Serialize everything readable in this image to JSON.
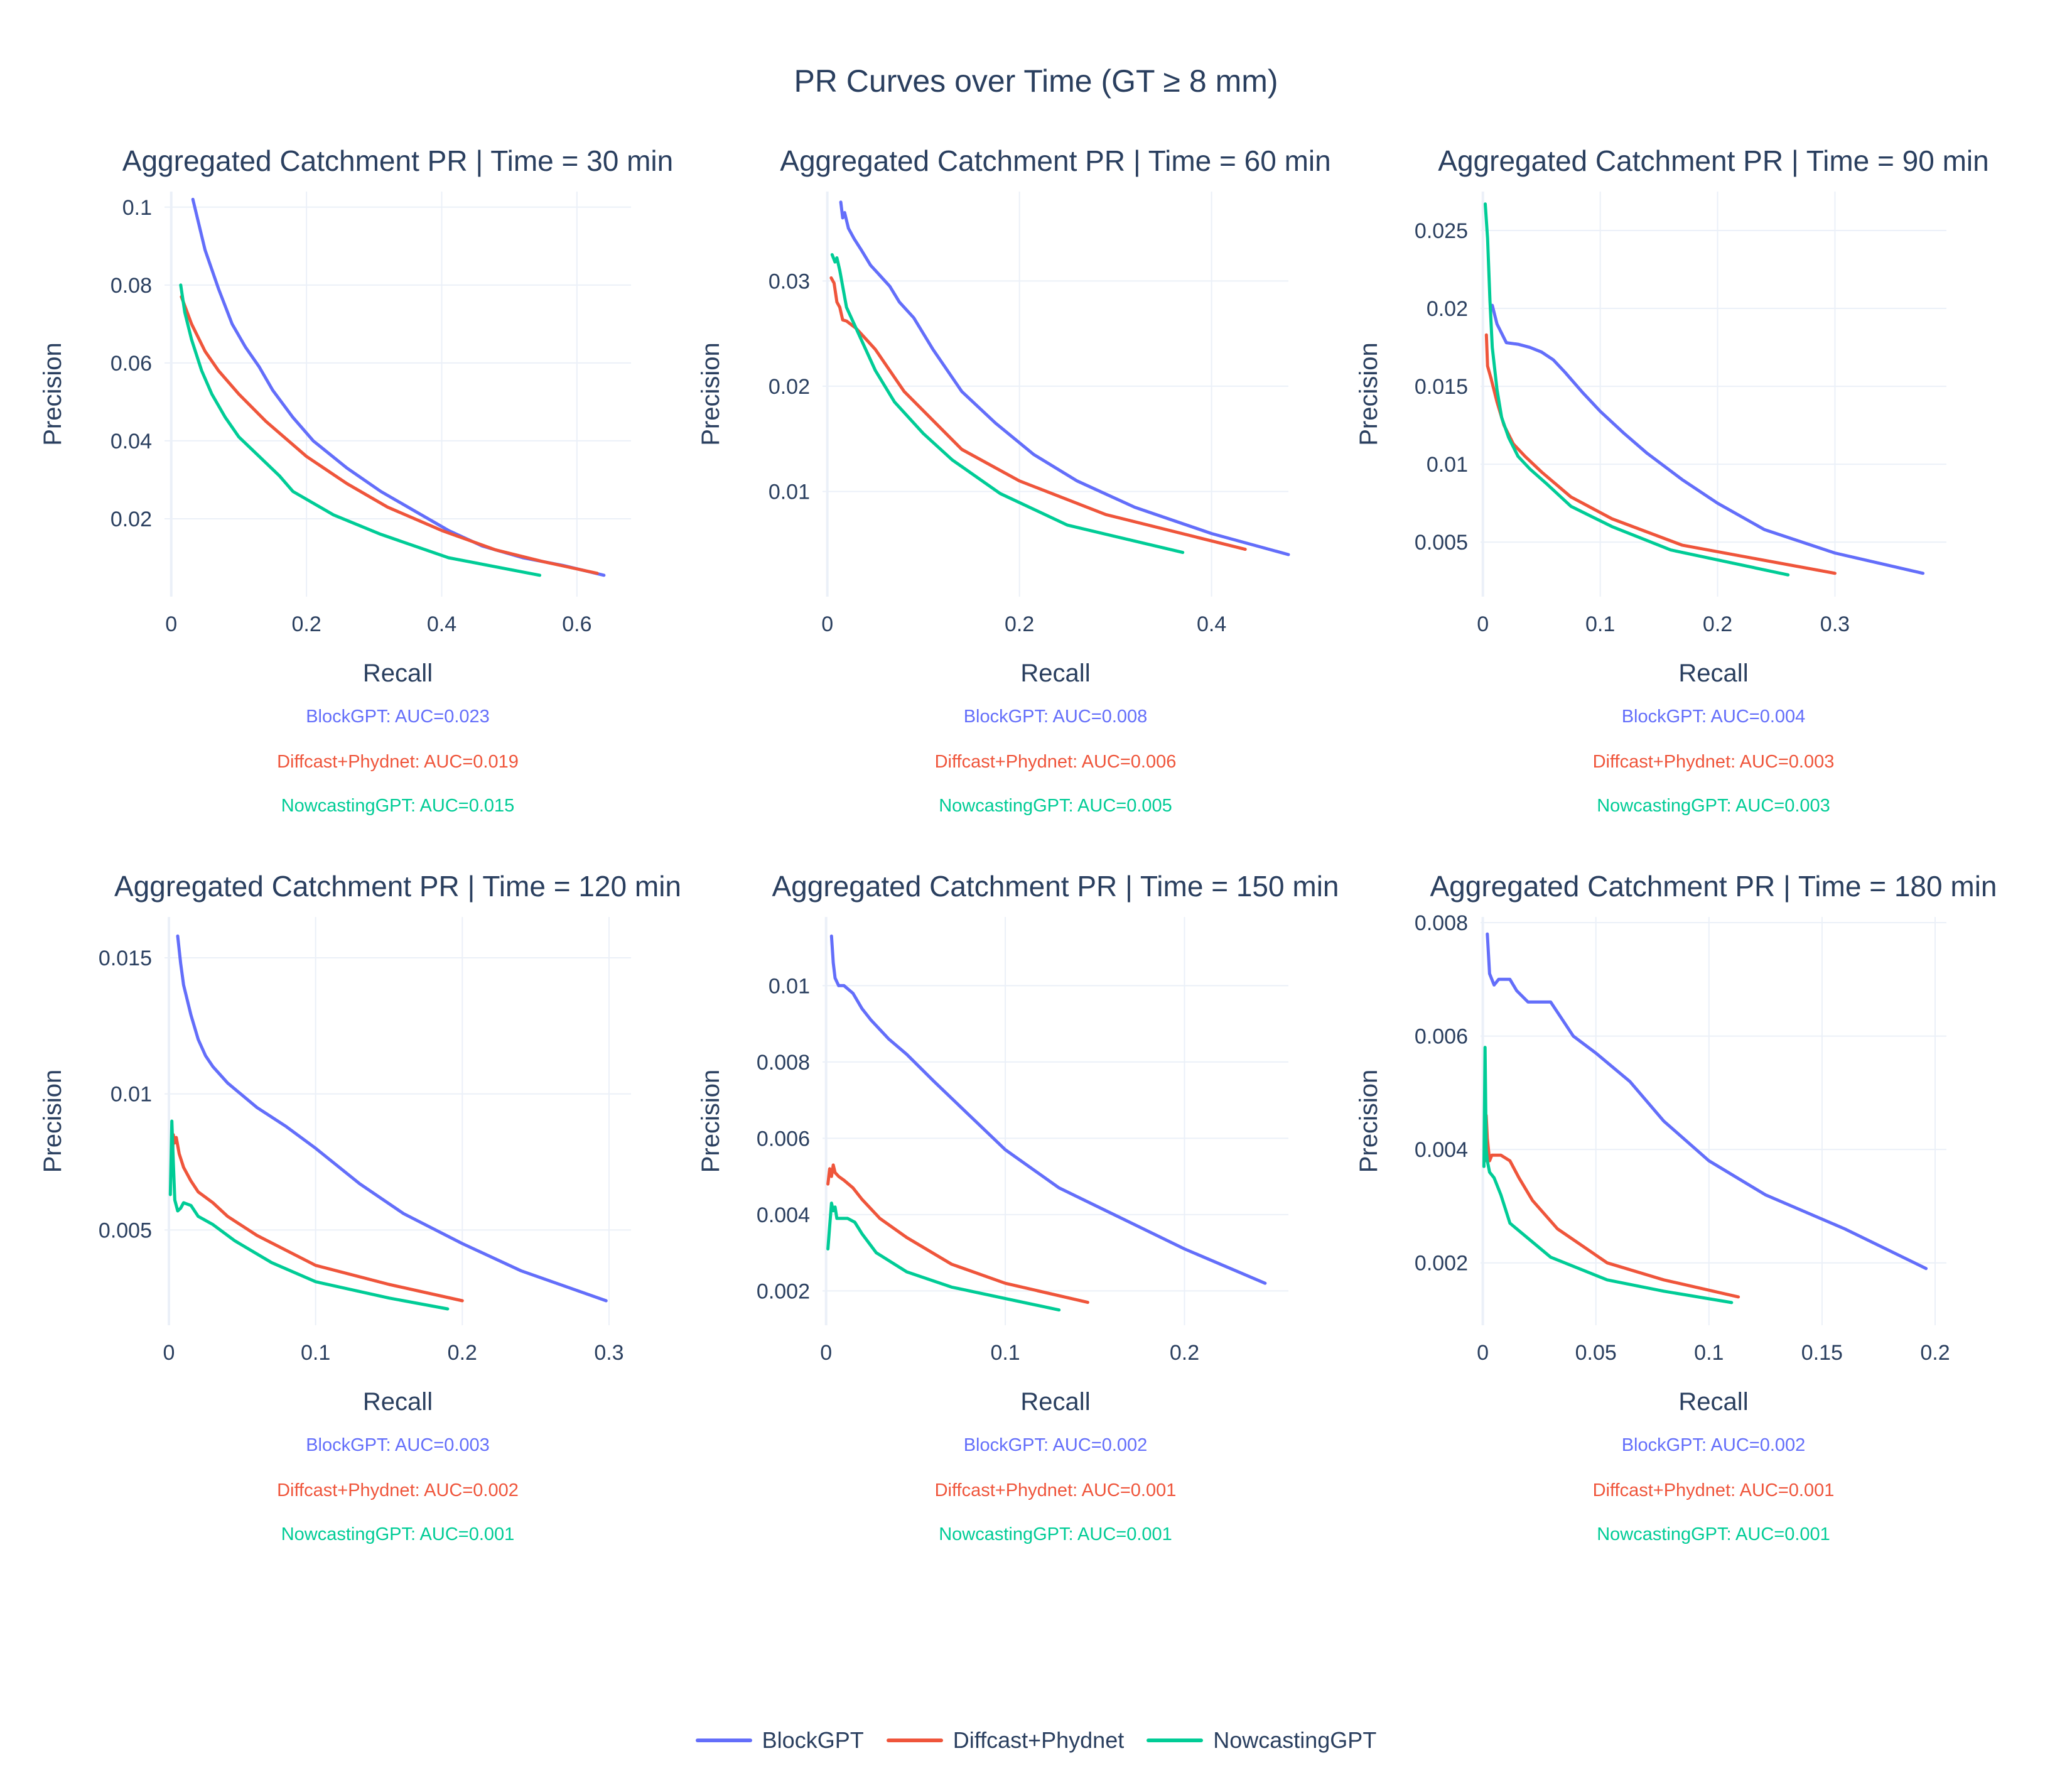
{
  "title": "PR Curves over Time (GT ≥ 8 mm)",
  "colors": {
    "BlockGPT": "#636efa",
    "Diffcast+Phydnet": "#ef553b",
    "NowcastingGPT": "#00cc96"
  },
  "legend": [
    "BlockGPT",
    "Diffcast+Phydnet",
    "NowcastingGPT"
  ],
  "chart_data": [
    {
      "type": "line",
      "title": "Aggregated Catchment PR | Time = 30 min",
      "xlabel": "Recall",
      "ylabel": "Precision",
      "xlim": [
        -0.01,
        0.68
      ],
      "ylim": [
        0.0,
        0.104
      ],
      "xticks": [
        {
          "v": 0,
          "t": "0"
        },
        {
          "v": 0.2,
          "t": "0.2"
        },
        {
          "v": 0.4,
          "t": "0.4"
        },
        {
          "v": 0.6,
          "t": "0.6"
        }
      ],
      "yticks": [
        {
          "v": 0.02,
          "t": "0.02"
        },
        {
          "v": 0.04,
          "t": "0.04"
        },
        {
          "v": 0.06,
          "t": "0.06"
        },
        {
          "v": 0.08,
          "t": "0.08"
        },
        {
          "v": 0.1,
          "t": "0.1"
        }
      ],
      "auc_labels": [
        "BlockGPT: AUC=0.023",
        "Diffcast+Phydnet: AUC=0.019",
        "NowcastingGPT: AUC=0.015"
      ],
      "series": [
        {
          "name": "BlockGPT",
          "x": [
            0.032,
            0.05,
            0.07,
            0.09,
            0.11,
            0.13,
            0.15,
            0.18,
            0.21,
            0.26,
            0.31,
            0.36,
            0.41,
            0.46,
            0.52,
            0.58,
            0.64
          ],
          "y": [
            0.102,
            0.089,
            0.079,
            0.07,
            0.064,
            0.059,
            0.053,
            0.046,
            0.04,
            0.033,
            0.027,
            0.022,
            0.017,
            0.013,
            0.01,
            0.008,
            0.0055
          ]
        },
        {
          "name": "Diffcast+Phydnet",
          "x": [
            0.015,
            0.03,
            0.05,
            0.07,
            0.1,
            0.14,
            0.2,
            0.26,
            0.32,
            0.4,
            0.48,
            0.55,
            0.63
          ],
          "y": [
            0.077,
            0.07,
            0.063,
            0.058,
            0.052,
            0.045,
            0.036,
            0.029,
            0.023,
            0.017,
            0.012,
            0.009,
            0.006
          ]
        },
        {
          "name": "NowcastingGPT",
          "x": [
            0.014,
            0.02,
            0.03,
            0.045,
            0.06,
            0.08,
            0.1,
            0.13,
            0.16,
            0.18,
            0.24,
            0.31,
            0.41,
            0.545
          ],
          "y": [
            0.08,
            0.073,
            0.066,
            0.058,
            0.052,
            0.046,
            0.041,
            0.036,
            0.031,
            0.027,
            0.021,
            0.016,
            0.01,
            0.0055
          ]
        }
      ]
    },
    {
      "type": "line",
      "title": "Aggregated Catchment PR | Time = 60 min",
      "xlabel": "Recall",
      "ylabel": "Precision",
      "xlim": [
        -0.005,
        0.48
      ],
      "ylim": [
        0.0,
        0.0385
      ],
      "xticks": [
        {
          "v": 0,
          "t": "0"
        },
        {
          "v": 0.2,
          "t": "0.2"
        },
        {
          "v": 0.4,
          "t": "0.4"
        }
      ],
      "yticks": [
        {
          "v": 0.01,
          "t": "0.01"
        },
        {
          "v": 0.02,
          "t": "0.02"
        },
        {
          "v": 0.03,
          "t": "0.03"
        }
      ],
      "auc_labels": [
        "BlockGPT: AUC=0.008",
        "Diffcast+Phydnet: AUC=0.006",
        "NowcastingGPT: AUC=0.005"
      ],
      "series": [
        {
          "name": "BlockGPT",
          "x": [
            0.014,
            0.016,
            0.018,
            0.022,
            0.028,
            0.035,
            0.045,
            0.055,
            0.065,
            0.075,
            0.09,
            0.11,
            0.14,
            0.175,
            0.215,
            0.26,
            0.32,
            0.4,
            0.48
          ],
          "y": [
            0.0375,
            0.036,
            0.0365,
            0.035,
            0.034,
            0.033,
            0.0315,
            0.0305,
            0.0295,
            0.028,
            0.0265,
            0.0235,
            0.0195,
            0.0165,
            0.0135,
            0.011,
            0.0085,
            0.006,
            0.004
          ]
        },
        {
          "name": "Diffcast+Phydnet",
          "x": [
            0.004,
            0.007,
            0.01,
            0.013,
            0.016,
            0.02,
            0.03,
            0.04,
            0.05,
            0.08,
            0.14,
            0.2,
            0.29,
            0.435
          ],
          "y": [
            0.0303,
            0.0298,
            0.028,
            0.0275,
            0.0263,
            0.0262,
            0.0255,
            0.0245,
            0.0235,
            0.0195,
            0.014,
            0.011,
            0.0078,
            0.0045
          ]
        },
        {
          "name": "NowcastingGPT",
          "x": [
            0.005,
            0.008,
            0.01,
            0.013,
            0.016,
            0.02,
            0.03,
            0.04,
            0.05,
            0.07,
            0.1,
            0.13,
            0.18,
            0.25,
            0.37
          ],
          "y": [
            0.0325,
            0.0318,
            0.0322,
            0.031,
            0.0295,
            0.0275,
            0.0255,
            0.0235,
            0.0215,
            0.0185,
            0.0155,
            0.013,
            0.0098,
            0.0068,
            0.0042
          ]
        }
      ]
    },
    {
      "type": "line",
      "title": "Aggregated Catchment PR | Time = 90 min",
      "xlabel": "Recall",
      "ylabel": "Precision",
      "xlim": [
        -0.002,
        0.395
      ],
      "ylim": [
        0.0015,
        0.0275
      ],
      "xticks": [
        {
          "v": 0,
          "t": "0"
        },
        {
          "v": 0.1,
          "t": "0.1"
        },
        {
          "v": 0.2,
          "t": "0.2"
        },
        {
          "v": 0.3,
          "t": "0.3"
        }
      ],
      "yticks": [
        {
          "v": 0.005,
          "t": "0.005"
        },
        {
          "v": 0.01,
          "t": "0.01"
        },
        {
          "v": 0.015,
          "t": "0.015"
        },
        {
          "v": 0.02,
          "t": "0.02"
        },
        {
          "v": 0.025,
          "t": "0.025"
        }
      ],
      "auc_labels": [
        "BlockGPT: AUC=0.004",
        "Diffcast+Phydnet: AUC=0.003",
        "NowcastingGPT: AUC=0.003"
      ],
      "series": [
        {
          "name": "BlockGPT",
          "x": [
            0.008,
            0.012,
            0.02,
            0.03,
            0.04,
            0.05,
            0.06,
            0.07,
            0.085,
            0.1,
            0.12,
            0.14,
            0.17,
            0.2,
            0.24,
            0.3,
            0.375
          ],
          "y": [
            0.0202,
            0.019,
            0.0178,
            0.0177,
            0.0175,
            0.0172,
            0.0167,
            0.0159,
            0.0146,
            0.0134,
            0.012,
            0.0107,
            0.009,
            0.0075,
            0.0058,
            0.0043,
            0.003
          ]
        },
        {
          "name": "Diffcast+Phydnet",
          "x": [
            0.003,
            0.004,
            0.007,
            0.012,
            0.018,
            0.026,
            0.036,
            0.05,
            0.075,
            0.11,
            0.17,
            0.3
          ],
          "y": [
            0.0183,
            0.0163,
            0.0155,
            0.014,
            0.0125,
            0.0113,
            0.0105,
            0.0095,
            0.0079,
            0.0065,
            0.0048,
            0.003
          ]
        },
        {
          "name": "NowcastingGPT",
          "x": [
            0.002,
            0.004,
            0.006,
            0.008,
            0.012,
            0.016,
            0.022,
            0.03,
            0.04,
            0.055,
            0.075,
            0.11,
            0.16,
            0.26
          ],
          "y": [
            0.0267,
            0.0245,
            0.0205,
            0.0175,
            0.0148,
            0.013,
            0.0117,
            0.0105,
            0.0097,
            0.0087,
            0.0073,
            0.006,
            0.0045,
            0.0029
          ]
        }
      ]
    },
    {
      "type": "line",
      "title": "Aggregated Catchment PR | Time = 120 min",
      "xlabel": "Recall",
      "ylabel": "Precision",
      "xlim": [
        -0.003,
        0.315
      ],
      "ylim": [
        0.0015,
        0.0165
      ],
      "xticks": [
        {
          "v": 0,
          "t": "0"
        },
        {
          "v": 0.1,
          "t": "0.1"
        },
        {
          "v": 0.2,
          "t": "0.2"
        },
        {
          "v": 0.3,
          "t": "0.3"
        }
      ],
      "yticks": [
        {
          "v": 0.005,
          "t": "0.005"
        },
        {
          "v": 0.01,
          "t": "0.01"
        },
        {
          "v": 0.015,
          "t": "0.015"
        }
      ],
      "auc_labels": [
        "BlockGPT: AUC=0.003",
        "Diffcast+Phydnet: AUC=0.002",
        "NowcastingGPT: AUC=0.001"
      ],
      "series": [
        {
          "name": "BlockGPT",
          "x": [
            0.006,
            0.008,
            0.01,
            0.015,
            0.02,
            0.025,
            0.03,
            0.04,
            0.06,
            0.08,
            0.1,
            0.13,
            0.16,
            0.2,
            0.24,
            0.298
          ],
          "y": [
            0.0158,
            0.0148,
            0.014,
            0.0129,
            0.012,
            0.0114,
            0.011,
            0.0104,
            0.0095,
            0.0088,
            0.008,
            0.0067,
            0.0056,
            0.0045,
            0.0035,
            0.0024
          ]
        },
        {
          "name": "Diffcast+Phydnet",
          "x": [
            0.002,
            0.003,
            0.004,
            0.005,
            0.007,
            0.01,
            0.015,
            0.02,
            0.03,
            0.04,
            0.06,
            0.1,
            0.15,
            0.2
          ],
          "y": [
            0.0072,
            0.0085,
            0.0082,
            0.0084,
            0.0078,
            0.0073,
            0.0068,
            0.0064,
            0.006,
            0.0055,
            0.0048,
            0.0037,
            0.003,
            0.0024
          ]
        },
        {
          "name": "NowcastingGPT",
          "x": [
            0.001,
            0.002,
            0.003,
            0.004,
            0.005,
            0.006,
            0.008,
            0.01,
            0.015,
            0.02,
            0.03,
            0.045,
            0.07,
            0.1,
            0.15,
            0.19
          ],
          "y": [
            0.0063,
            0.009,
            0.0075,
            0.0061,
            0.0059,
            0.0057,
            0.0058,
            0.006,
            0.0059,
            0.0055,
            0.0052,
            0.0046,
            0.0038,
            0.0031,
            0.0025,
            0.0021
          ]
        }
      ]
    },
    {
      "type": "line",
      "title": "Aggregated Catchment PR | Time = 150 min",
      "xlabel": "Recall",
      "ylabel": "Precision",
      "xlim": [
        -0.002,
        0.258
      ],
      "ylim": [
        0.0011,
        0.0118
      ],
      "xticks": [
        {
          "v": 0,
          "t": "0"
        },
        {
          "v": 0.1,
          "t": "0.1"
        },
        {
          "v": 0.2,
          "t": "0.2"
        }
      ],
      "yticks": [
        {
          "v": 0.002,
          "t": "0.002"
        },
        {
          "v": 0.004,
          "t": "0.004"
        },
        {
          "v": 0.006,
          "t": "0.006"
        },
        {
          "v": 0.008,
          "t": "0.008"
        },
        {
          "v": 0.01,
          "t": "0.01"
        }
      ],
      "auc_labels": [
        "BlockGPT: AUC=0.002",
        "Diffcast+Phydnet: AUC=0.001",
        "NowcastingGPT: AUC=0.001"
      ],
      "series": [
        {
          "name": "BlockGPT",
          "x": [
            0.003,
            0.004,
            0.005,
            0.007,
            0.01,
            0.015,
            0.02,
            0.025,
            0.035,
            0.045,
            0.06,
            0.08,
            0.1,
            0.13,
            0.165,
            0.2,
            0.245
          ],
          "y": [
            0.0113,
            0.0106,
            0.0102,
            0.01,
            0.01,
            0.0098,
            0.0094,
            0.0091,
            0.0086,
            0.0082,
            0.0075,
            0.0066,
            0.0057,
            0.0047,
            0.0039,
            0.0031,
            0.0022
          ]
        },
        {
          "name": "Diffcast+Phydnet",
          "x": [
            0.001,
            0.002,
            0.003,
            0.004,
            0.005,
            0.007,
            0.01,
            0.015,
            0.02,
            0.03,
            0.045,
            0.07,
            0.1,
            0.146
          ],
          "y": [
            0.0048,
            0.0052,
            0.005,
            0.0053,
            0.0051,
            0.005,
            0.0049,
            0.0047,
            0.0044,
            0.0039,
            0.0034,
            0.0027,
            0.0022,
            0.0017
          ]
        },
        {
          "name": "NowcastingGPT",
          "x": [
            0.001,
            0.002,
            0.003,
            0.004,
            0.005,
            0.006,
            0.008,
            0.012,
            0.016,
            0.02,
            0.028,
            0.045,
            0.07,
            0.1,
            0.13
          ],
          "y": [
            0.0031,
            0.0037,
            0.0043,
            0.0041,
            0.0042,
            0.0039,
            0.0039,
            0.0039,
            0.0038,
            0.0035,
            0.003,
            0.0025,
            0.0021,
            0.0018,
            0.0015
          ]
        }
      ]
    },
    {
      "type": "line",
      "title": "Aggregated Catchment PR | Time = 180 min",
      "xlabel": "Recall",
      "ylabel": "Precision",
      "xlim": [
        -0.001,
        0.205
      ],
      "ylim": [
        0.0009,
        0.0081
      ],
      "xticks": [
        {
          "v": 0,
          "t": "0"
        },
        {
          "v": 0.05,
          "t": "0.05"
        },
        {
          "v": 0.1,
          "t": "0.1"
        },
        {
          "v": 0.15,
          "t": "0.15"
        },
        {
          "v": 0.2,
          "t": "0.2"
        }
      ],
      "yticks": [
        {
          "v": 0.002,
          "t": "0.002"
        },
        {
          "v": 0.004,
          "t": "0.004"
        },
        {
          "v": 0.006,
          "t": "0.006"
        },
        {
          "v": 0.008,
          "t": "0.008"
        }
      ],
      "auc_labels": [
        "BlockGPT: AUC=0.002",
        "Diffcast+Phydnet: AUC=0.001",
        "NowcastingGPT: AUC=0.001"
      ],
      "series": [
        {
          "name": "BlockGPT",
          "x": [
            0.002,
            0.003,
            0.005,
            0.007,
            0.009,
            0.012,
            0.015,
            0.02,
            0.025,
            0.03,
            0.035,
            0.04,
            0.05,
            0.065,
            0.08,
            0.1,
            0.125,
            0.16,
            0.196
          ],
          "y": [
            0.0078,
            0.0071,
            0.0069,
            0.007,
            0.007,
            0.007,
            0.0068,
            0.0066,
            0.0066,
            0.0066,
            0.0063,
            0.006,
            0.0057,
            0.0052,
            0.0045,
            0.0038,
            0.0032,
            0.0026,
            0.0019
          ]
        },
        {
          "name": "Diffcast+Phydnet",
          "x": [
            0.001,
            0.0015,
            0.002,
            0.003,
            0.004,
            0.006,
            0.008,
            0.012,
            0.016,
            0.022,
            0.033,
            0.055,
            0.08,
            0.113
          ],
          "y": [
            0.0038,
            0.0046,
            0.0042,
            0.0038,
            0.0039,
            0.0039,
            0.0039,
            0.0038,
            0.0035,
            0.0031,
            0.0026,
            0.002,
            0.0017,
            0.0014
          ]
        },
        {
          "name": "NowcastingGPT",
          "x": [
            0.0005,
            0.001,
            0.0015,
            0.002,
            0.003,
            0.005,
            0.008,
            0.012,
            0.018,
            0.03,
            0.055,
            0.08,
            0.11
          ],
          "y": [
            0.0037,
            0.0058,
            0.004,
            0.0038,
            0.0036,
            0.0035,
            0.0032,
            0.0027,
            0.0025,
            0.0021,
            0.0017,
            0.0015,
            0.0013
          ]
        }
      ]
    }
  ]
}
